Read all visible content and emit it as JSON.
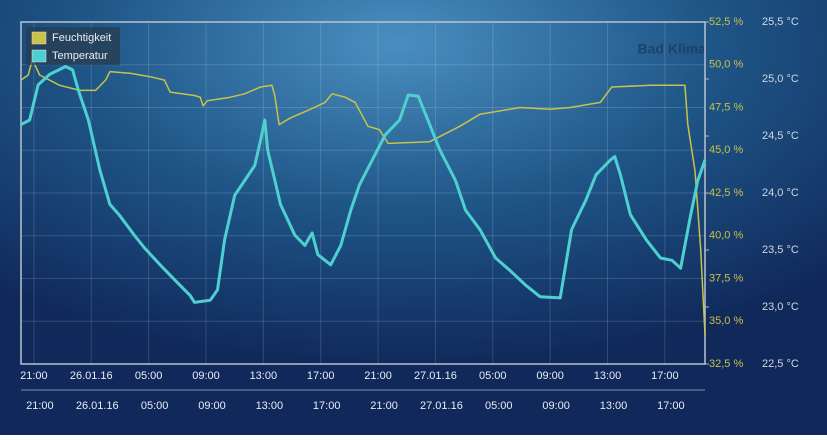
{
  "chart_data": {
    "type": "line",
    "title": "Bad Klima",
    "series": [
      {
        "name": "Feuchtigkeit",
        "color": "#c8c24a",
        "axis": "y",
        "x": [
          -0.9,
          -0.4,
          -0.1,
          0.4,
          1.8,
          3.2,
          4.3,
          5.0,
          5.3,
          6.7,
          8.1,
          9.1,
          9.5,
          11.2,
          11.6,
          11.8,
          12.1,
          13.7,
          14.7,
          15.8,
          16.6,
          16.8,
          17.1,
          17.9,
          19.3,
          20.3,
          20.8,
          21.7,
          22.4,
          23.3,
          24.1,
          24.7,
          27.6,
          28.3,
          29.7,
          31.1,
          33.9,
          36.0,
          37.4,
          39.5,
          40.3,
          43.0,
          45.4,
          45.6,
          46.1,
          46.5,
          46.8
        ],
        "values": [
          49.1,
          49.4,
          50.3,
          49.4,
          48.8,
          48.5,
          48.5,
          49.1,
          49.6,
          49.5,
          49.3,
          49.1,
          48.4,
          48.2,
          48.1,
          47.6,
          47.9,
          48.1,
          48.3,
          48.7,
          48.8,
          48.2,
          46.5,
          46.9,
          47.4,
          47.8,
          48.3,
          48.1,
          47.8,
          46.4,
          46.2,
          45.4,
          45.5,
          45.8,
          46.4,
          47.1,
          47.5,
          47.4,
          47.5,
          47.8,
          48.7,
          48.8,
          48.8,
          46.5,
          43.8,
          39.2,
          34.2
        ]
      },
      {
        "name": "Temperatur",
        "color": "#4fd0d0",
        "axis": "y2",
        "x": [
          -0.9,
          -0.3,
          0.3,
          1.1,
          2.2,
          2.7,
          3.1,
          3.8,
          4.6,
          5.3,
          6.0,
          7.0,
          7.7,
          8.8,
          9.8,
          10.9,
          11.2,
          12.3,
          12.8,
          13.3,
          14.0,
          14.7,
          15.4,
          15.8,
          16.1,
          16.3,
          17.2,
          18.2,
          18.9,
          19.4,
          19.8,
          20.7,
          21.4,
          22.1,
          22.7,
          23.6,
          24.5,
          25.5,
          26.1,
          26.8,
          27.6,
          28.3,
          29.4,
          30.1,
          31.1,
          32.2,
          33.2,
          34.3,
          35.3,
          36.7,
          37.5,
          38.5,
          39.2,
          40.2,
          40.5,
          40.9,
          41.6,
          42.7,
          43.7,
          44.5,
          45.1,
          45.8,
          46.3,
          46.8
        ],
        "values": [
          24.6,
          24.64,
          24.95,
          25.04,
          25.11,
          25.08,
          24.9,
          24.64,
          24.2,
          23.9,
          23.8,
          23.63,
          23.52,
          23.37,
          23.24,
          23.1,
          23.04,
          23.06,
          23.15,
          23.59,
          23.98,
          24.11,
          24.24,
          24.46,
          24.64,
          24.38,
          23.9,
          23.63,
          23.54,
          23.65,
          23.46,
          23.37,
          23.54,
          23.85,
          24.07,
          24.29,
          24.51,
          24.64,
          24.86,
          24.85,
          24.6,
          24.38,
          24.11,
          23.85,
          23.68,
          23.43,
          23.32,
          23.19,
          23.09,
          23.08,
          23.68,
          23.94,
          24.16,
          24.29,
          24.32,
          24.16,
          23.81,
          23.59,
          23.43,
          23.41,
          23.34,
          23.81,
          24.11,
          24.29
        ]
      }
    ],
    "xlim": [
      -0.9,
      46.8
    ],
    "xticks": [
      {
        "value": 0,
        "label": "21:00"
      },
      {
        "value": 4,
        "label": "26.01.16"
      },
      {
        "value": 8,
        "label": "05:00"
      },
      {
        "value": 12,
        "label": "09:00"
      },
      {
        "value": 16,
        "label": "13:00"
      },
      {
        "value": 20,
        "label": "17:00"
      },
      {
        "value": 24,
        "label": "21:00"
      },
      {
        "value": 28,
        "label": "27.01.16"
      },
      {
        "value": 32,
        "label": "05:00"
      },
      {
        "value": 36,
        "label": "09:00"
      },
      {
        "value": 40,
        "label": "13:00"
      },
      {
        "value": 44,
        "label": "17:00"
      }
    ],
    "ylim": [
      32.5,
      52.5
    ],
    "yticks": [
      {
        "value": 32.5,
        "label": "32,5 %"
      },
      {
        "value": 35,
        "label": "35,0 %"
      },
      {
        "value": 37.5,
        "label": "37,5 %"
      },
      {
        "value": 40,
        "label": "40,0 %"
      },
      {
        "value": 42.5,
        "label": "42,5 %"
      },
      {
        "value": 45,
        "label": "45,0 %"
      },
      {
        "value": 47.5,
        "label": "47,5 %"
      },
      {
        "value": 50,
        "label": "50,0 %"
      },
      {
        "value": 52.5,
        "label": "52,5 %"
      }
    ],
    "y2lim": [
      22.5,
      25.5
    ],
    "y2ticks": [
      {
        "value": 22.5,
        "label": "22,5 °C"
      },
      {
        "value": 23,
        "label": "23,0 °C"
      },
      {
        "value": 23.5,
        "label": "23,5 °C"
      },
      {
        "value": 24,
        "label": "24,0 °C"
      },
      {
        "value": 24.5,
        "label": "24,5 °C"
      },
      {
        "value": 25,
        "label": "25,0 °C"
      },
      {
        "value": 25.5,
        "label": "25,5 °C"
      }
    ],
    "grid": true,
    "legend": "top-left"
  }
}
